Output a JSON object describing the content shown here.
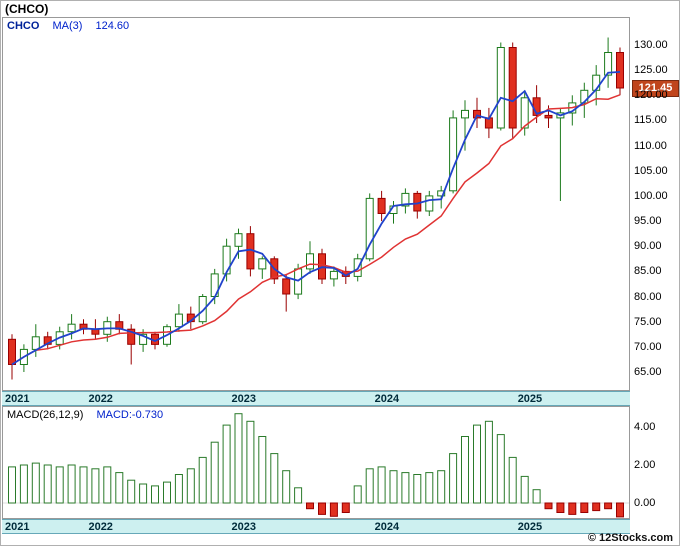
{
  "title": "(CHCO)",
  "legend": {
    "symbol": "CHCO",
    "ma_label": "MA(3)",
    "ma_value": "124.60"
  },
  "price_badge": {
    "value": "121.45"
  },
  "macd_panel": {
    "label": "MACD(26,12,9)",
    "value": "MACD:-0.730"
  },
  "footer": {
    "watermark": "© 12Stocks.com"
  },
  "chart_data": {
    "type": "candlestick",
    "title": "(CHCO)",
    "interval": "monthly",
    "last_price": 121.45,
    "ma_blue_period": 3,
    "ma_red_period": 9,
    "price_axis": {
      "ticks": [
        130,
        125,
        120,
        115,
        110,
        105,
        100,
        95,
        90,
        85,
        80,
        75,
        70,
        65
      ]
    },
    "year_labels": [
      {
        "label": "2021",
        "index": 0
      },
      {
        "label": "2022",
        "index": 7
      },
      {
        "label": "2023",
        "index": 19
      },
      {
        "label": "2024",
        "index": 31
      },
      {
        "label": "2025",
        "index": 43
      }
    ],
    "candles": [
      [
        71.5,
        72.5,
        63.5,
        66.5
      ],
      [
        66.5,
        70.5,
        65,
        69.5
      ],
      [
        69.5,
        74.5,
        68,
        72
      ],
      [
        72,
        73,
        69.5,
        70.5
      ],
      [
        70.5,
        74,
        69.5,
        73
      ],
      [
        73,
        76.5,
        71.5,
        74.5
      ],
      [
        74.5,
        75.5,
        72.5,
        73.5
      ],
      [
        73.5,
        75.5,
        71.5,
        72.5
      ],
      [
        72.5,
        76,
        71,
        75
      ],
      [
        75,
        76.5,
        72.5,
        73.5
      ],
      [
        73.5,
        74.5,
        66.5,
        70.5
      ],
      [
        70.5,
        73.5,
        69,
        72.5
      ],
      [
        72.5,
        73,
        69.5,
        70.5
      ],
      [
        70.5,
        74.5,
        70,
        74
      ],
      [
        74,
        78.5,
        73,
        76.5
      ],
      [
        76.5,
        78,
        73.5,
        75
      ],
      [
        75,
        80.5,
        74.5,
        80
      ],
      [
        80,
        85.5,
        78.5,
        84.5
      ],
      [
        84.5,
        91.5,
        83,
        90
      ],
      [
        90,
        93.5,
        87.5,
        92.5
      ],
      [
        92.5,
        94,
        84,
        85.5
      ],
      [
        85.5,
        88,
        83.5,
        87.5
      ],
      [
        87.5,
        88,
        82.5,
        83.5
      ],
      [
        83.5,
        84.5,
        77,
        80.5
      ],
      [
        80.5,
        86.5,
        79.5,
        85.5
      ],
      [
        85.5,
        91,
        84.5,
        88.5
      ],
      [
        88.5,
        89.5,
        82.5,
        83.5
      ],
      [
        83.5,
        86,
        82,
        85
      ],
      [
        85,
        86,
        82.5,
        84
      ],
      [
        84,
        88.5,
        83,
        87.5
      ],
      [
        87.5,
        100.5,
        87,
        99.5
      ],
      [
        99.5,
        101,
        95,
        96.5
      ],
      [
        96.5,
        99,
        94.5,
        98
      ],
      [
        98,
        101.5,
        96.5,
        100.5
      ],
      [
        100.5,
        101,
        95.5,
        97
      ],
      [
        97,
        101,
        96,
        100
      ],
      [
        100,
        102,
        97.5,
        101
      ],
      [
        101,
        117,
        100.5,
        115.5
      ],
      [
        115.5,
        119,
        109,
        117
      ],
      [
        117,
        119.5,
        113.5,
        115.5
      ],
      [
        115.5,
        117.5,
        111.5,
        113.5
      ],
      [
        113.5,
        130.5,
        113,
        129.5
      ],
      [
        129.5,
        130.5,
        111.5,
        113.5
      ],
      [
        113.5,
        121,
        112,
        119.5
      ],
      [
        119.5,
        122,
        114.5,
        116
      ],
      [
        116,
        118,
        113.5,
        115.5
      ],
      [
        115.5,
        117.5,
        99,
        116.5
      ],
      [
        116.5,
        120,
        114,
        118.5
      ],
      [
        118.5,
        122.5,
        115.5,
        121
      ],
      [
        121,
        126,
        118,
        124
      ],
      [
        124,
        131.5,
        121.5,
        128.5
      ],
      [
        128.5,
        129.5,
        120,
        121.45
      ]
    ],
    "macd": {
      "params": "26,12,9",
      "last": -0.73,
      "axis_ticks": [
        4,
        2,
        0
      ],
      "histogram": [
        1.9,
        2.0,
        2.1,
        2.0,
        1.9,
        2.0,
        1.9,
        1.8,
        1.9,
        1.6,
        1.2,
        1.0,
        0.9,
        1.1,
        1.5,
        1.8,
        2.4,
        3.2,
        4.1,
        4.7,
        4.3,
        3.5,
        2.6,
        1.7,
        0.8,
        -0.3,
        -0.6,
        -0.7,
        -0.5,
        0.9,
        1.8,
        1.9,
        1.7,
        1.6,
        1.5,
        1.6,
        1.7,
        2.6,
        3.5,
        4.1,
        4.3,
        3.6,
        2.4,
        1.4,
        0.7,
        -0.3,
        -0.5,
        -0.6,
        -0.5,
        -0.4,
        -0.3,
        -0.73
      ]
    },
    "colors": {
      "up": "#1c7a1c",
      "down": "#e03020",
      "down_border": "#990000",
      "ma_blue": "#2143cc",
      "ma_red": "#e03333",
      "macd_pos": "#2a7a2a",
      "macd_neg": "#e03020",
      "macd_neg_border": "#990000",
      "badge_bg": "#c0451c",
      "band_bg": "#cdf0f0"
    }
  }
}
